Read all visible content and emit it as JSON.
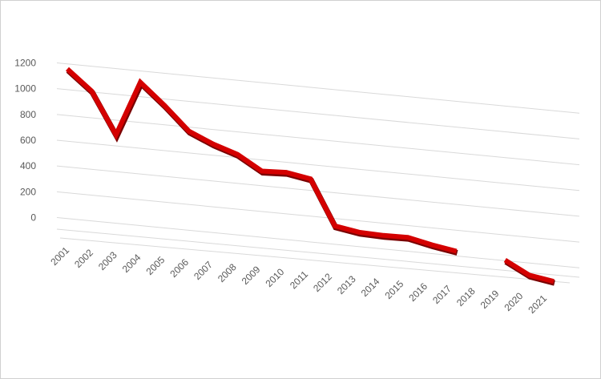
{
  "chart_data": {
    "type": "line",
    "style": "3d-line",
    "categories": [
      "2001",
      "2002",
      "2003",
      "2004",
      "2005",
      "2006",
      "2007",
      "2008",
      "2009",
      "2010",
      "2011",
      "2012",
      "2013",
      "2014",
      "2015",
      "2016",
      "2017",
      "2018",
      "2019",
      "2020",
      "2021"
    ],
    "series": [
      {
        "values": [
          1150,
          1000,
          680,
          1110,
          950,
          770,
          690,
          630,
          520,
          530,
          500,
          150,
          120,
          115,
          120,
          80,
          50,
          null,
          20,
          -80,
          -110
        ]
      }
    ],
    "y_ticks": [
      "0",
      "200",
      "400",
      "600",
      "800",
      "1000",
      "1200"
    ],
    "ylim": [
      0,
      1200
    ],
    "title": "",
    "xlabel": "",
    "ylabel": "",
    "gridlines": true,
    "legend": "none",
    "line_color": "#d40000",
    "line_shade_color": "#7a0000",
    "grid_color": "#d9d9d9",
    "label_color": "#595959"
  }
}
